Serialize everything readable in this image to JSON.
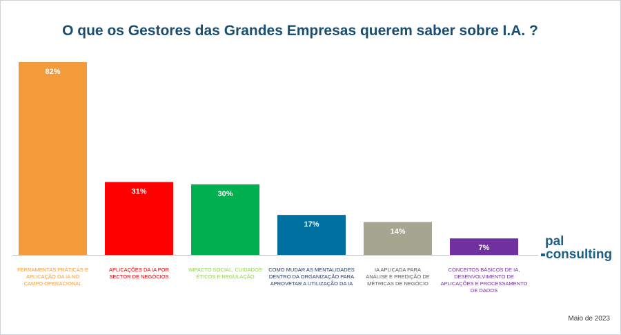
{
  "title": "O que os Gestores das Grandes Empresas querem saber sobre I.A. ?",
  "date_note": "Maio de 2023",
  "logo": {
    "line1": "pal",
    "line2": "consulting"
  },
  "chart_data": {
    "type": "bar",
    "title": "O que os Gestores das Grandes Empresas querem saber sobre I.A. ?",
    "categories": [
      [
        "FERRAMENTAS PRÁTICAS E",
        "APLICAÇÃO DA IA NO",
        "CAMPO OPERACIONAL"
      ],
      [
        "APLICAÇÕES DA IA POR",
        "SECTOR DE NEGÓCIOS"
      ],
      [
        "IMPACTO SOCIAL, CUIDADOS",
        "ÉTICOS E REGULAÇÃO"
      ],
      [
        "COMO MUDAR AS MENTALIDADES",
        "DENTRO DA ORGANIZAÇÃO PARA",
        "APROVETAR A UTILIZAÇÃO DA IA"
      ],
      [
        "IA APLICADA PARA",
        "ANÁLISE E PREDIÇÃO DE",
        "MÉTRICAS DE NEGÓCIO"
      ],
      [
        "CONCEITOS BÁSICOS DE IA,",
        "DESENVOLVIMENTO DE",
        "APLICAÇÕES E PROCESSAMENTO",
        "DE DADOS"
      ]
    ],
    "values": [
      82,
      31,
      30,
      17,
      14,
      7
    ],
    "data_labels": [
      "82%",
      "31%",
      "30%",
      "17%",
      "14%",
      "7%"
    ],
    "colors": [
      "#f39a3a",
      "#ff0000",
      "#00b050",
      "#0070a0",
      "#a5a590",
      "#7030a0"
    ],
    "label_colors": [
      "#f39a3a",
      "#e00000",
      "#92d050",
      "#1f3864",
      "#595959",
      "#7030a0"
    ],
    "ylim": [
      0,
      82
    ],
    "grid": false,
    "legend": "none"
  }
}
